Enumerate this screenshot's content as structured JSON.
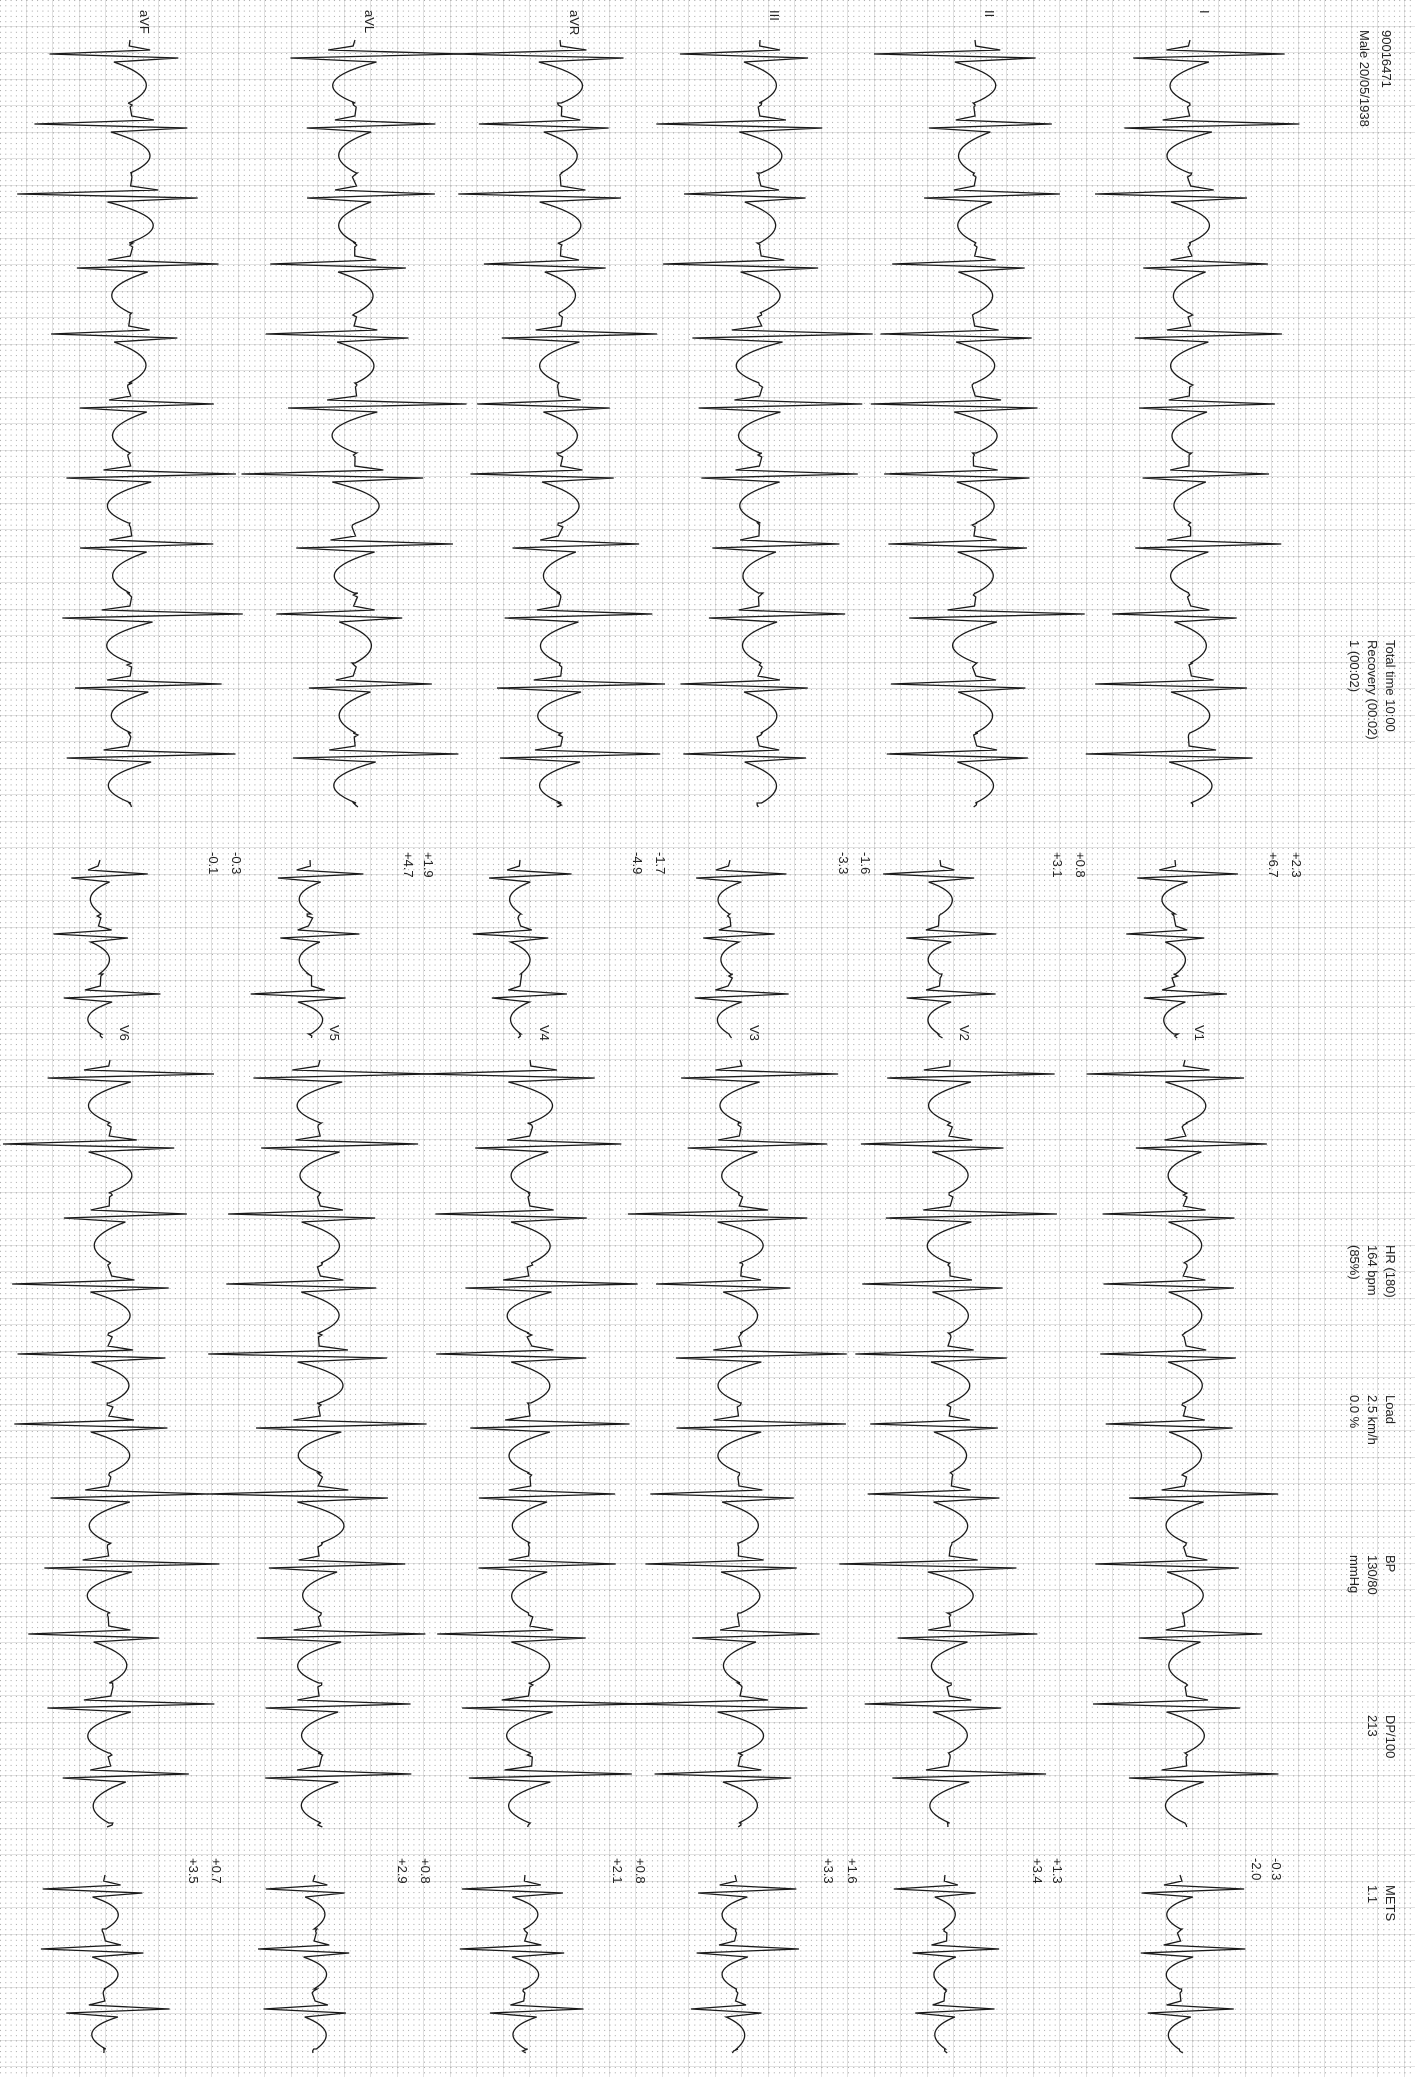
{
  "header": {
    "patient_id": "90016471",
    "patient_info": "Male 20/05/1938",
    "total_time": "Total time 10:00",
    "recovery": "Recovery (00:02)",
    "stage": "1 (00:02)",
    "hr_label": "HR (180)",
    "hr_value": "164  bpm",
    "hr_percent": "(85%)",
    "load_label": "Load",
    "speed": "2.5  km/h",
    "grade": "0.0  %",
    "bp_label": "BP",
    "bp_value": "130/80",
    "bp_unit": "mmHg",
    "dp_label": "DP/100",
    "dp_value": "213",
    "mets_label": "METS",
    "mets_value": "1.1"
  },
  "limb_leads": [
    {
      "name": "I",
      "st": [
        "+2.3",
        "+6.7"
      ]
    },
    {
      "name": "II",
      "st": [
        "+0.8",
        "+3.1"
      ]
    },
    {
      "name": "III",
      "st": [
        "-1.6",
        "-3.3"
      ]
    },
    {
      "name": "aVR",
      "st": [
        "-1.7",
        "-4.9"
      ]
    },
    {
      "name": "aVL",
      "st": [
        "+1.9",
        "+4.7"
      ]
    },
    {
      "name": "aVF",
      "st": [
        "-0.3",
        "-0.1"
      ]
    }
  ],
  "chest_leads": [
    {
      "name": "V1",
      "st": [
        "-0.3",
        "-2.0"
      ]
    },
    {
      "name": "V2",
      "st": [
        "+1.3",
        "+3.4"
      ]
    },
    {
      "name": "V3",
      "st": [
        "+1.6",
        "+3.3"
      ]
    },
    {
      "name": "V4",
      "st": [
        "+0.8",
        "+2.1"
      ]
    },
    {
      "name": "V5",
      "st": [
        "+0.8",
        "+2.9"
      ]
    },
    {
      "name": "V6",
      "st": [
        "+0.7",
        "+3.5"
      ]
    }
  ]
}
